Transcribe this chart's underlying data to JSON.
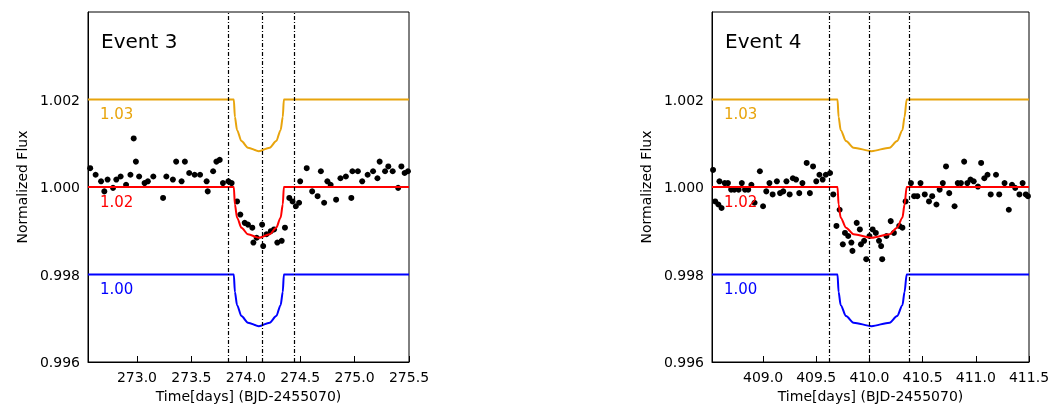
{
  "chart_data": [
    {
      "type": "scatter",
      "title": "Event 3",
      "xlabel": "Time[days] (BJD-2455070)",
      "ylabel": "Normalized Flux",
      "xlim": [
        272.55,
        275.5
      ],
      "ylim": [
        0.996,
        1.004
      ],
      "xticks": [
        {
          "value": 273,
          "label": "273.0"
        },
        {
          "value": 273.5,
          "label": "273.5"
        },
        {
          "value": 274,
          "label": "274.0"
        },
        {
          "value": 274.5,
          "label": "274.5"
        },
        {
          "value": 275,
          "label": "275.0"
        },
        {
          "value": 275.5,
          "label": "275.5"
        }
      ],
      "yticks": [
        {
          "value": 0.996,
          "label": "0.996"
        },
        {
          "value": 0.998,
          "label": "0.998"
        },
        {
          "value": 1,
          "label": "1.000"
        },
        {
          "value": 1.002,
          "label": "1.002"
        }
      ],
      "grid": false,
      "legend": false,
      "ref_lines": [
        {
          "axis": "x",
          "value": 273.84,
          "line_style": "dashed",
          "color": "#000000"
        },
        {
          "axis": "x",
          "value": 274.15,
          "line_style": "dashed",
          "color": "#000000"
        },
        {
          "axis": "x",
          "value": 274.45,
          "line_style": "dashed",
          "color": "#000000"
        }
      ],
      "series": [
        {
          "marker": "circle",
          "color": "#000000",
          "x": [
            272.57,
            272.62,
            272.67,
            272.7,
            272.73,
            272.78,
            272.81,
            272.85,
            272.9,
            272.94,
            272.97,
            272.99,
            273.02,
            273.07,
            273.1,
            273.15,
            273.24,
            273.27,
            273.33,
            273.36,
            273.41,
            273.44,
            273.48,
            273.53,
            273.58,
            273.64,
            273.65,
            273.7,
            273.73,
            273.76,
            273.79,
            273.84,
            273.87,
            273.92,
            273.95,
            273.99,
            274.02,
            274.06,
            274.07,
            274.1,
            274.15,
            274.16,
            274.19,
            274.23,
            274.26,
            274.29,
            274.33,
            274.36,
            274.4,
            274.43,
            274.46,
            274.49,
            274.5,
            274.56,
            274.61,
            274.66,
            274.69,
            274.72,
            274.75,
            274.78,
            274.83,
            274.87,
            274.92,
            274.97,
            274.98,
            275.03,
            275.07,
            275.12,
            275.17,
            275.21,
            275.23,
            275.28,
            275.31,
            275.35,
            275.4,
            275.43,
            275.46,
            275.49
          ],
          "values": [
            1.00043,
            1.00028,
            1.00013,
            0.9999,
            1.00017,
            0.99998,
            1.00017,
            1.00024,
            1.00005,
            1.00028,
            1.00111,
            1.00058,
            1.00024,
            1.00009,
            1.00013,
            1.00024,
            0.99975,
            1.00024,
            1.00017,
            1.00058,
            1.00013,
            1.00058,
            1.00032,
            1.00028,
            1.00028,
            1.00013,
            0.9999,
            1.00036,
            1.00058,
            1.00062,
            1.00009,
            1.00013,
            1.00009,
            0.99967,
            0.99937,
            0.99918,
            0.99914,
            0.99907,
            0.99873,
            0.99884,
            0.99914,
            0.99865,
            0.99892,
            0.99899,
            0.99903,
            0.99873,
            0.99877,
            0.99907,
            0.99975,
            0.99967,
            0.99956,
            0.99964,
            1.00013,
            1.00043,
            0.9999,
            0.99979,
            1.00036,
            0.99964,
            1.00013,
            1.00005,
            0.99971,
            1.0002,
            1.00024,
            0.99975,
            1.00036,
            1.00036,
            1.00013,
            1.00028,
            1.00036,
            1.0002,
            1.00058,
            1.00036,
            1.00047,
            1.00036,
            0.99998,
            1.00047,
            1.00032,
            1.00036
          ]
        },
        {
          "type": "line",
          "name": "1.03",
          "color": "#e8a40c",
          "x": [
            272.55,
            273.89,
            273.9,
            273.92,
            273.96,
            274.02,
            274.12,
            274.22,
            274.28,
            274.32,
            274.34,
            274.35,
            275.5
          ],
          "values": [
            1.002,
            1.002,
            1.0016,
            1.0013,
            1.00105,
            1.0009,
            1.00082,
            1.0009,
            1.00105,
            1.0013,
            1.0016,
            1.002,
            1.002
          ]
        },
        {
          "type": "line",
          "name": "1.02",
          "color": "#ff0000",
          "x": [
            272.55,
            273.89,
            273.9,
            273.92,
            273.96,
            274.02,
            274.12,
            274.22,
            274.28,
            274.32,
            274.34,
            274.35,
            275.5
          ],
          "values": [
            1.0,
            1.0,
            0.9996,
            0.9993,
            0.99907,
            0.99892,
            0.99884,
            0.99892,
            0.99907,
            0.9993,
            0.9996,
            1.0,
            1.0
          ]
        },
        {
          "type": "line",
          "name": "1.00",
          "color": "#0000ff",
          "x": [
            272.55,
            273.89,
            273.9,
            273.92,
            273.96,
            274.02,
            274.12,
            274.22,
            274.28,
            274.32,
            274.34,
            274.35,
            275.5
          ],
          "values": [
            0.998,
            0.998,
            0.9976,
            0.9973,
            0.99705,
            0.9969,
            0.99682,
            0.9969,
            0.99705,
            0.9973,
            0.9976,
            0.998,
            0.998
          ]
        }
      ]
    },
    {
      "type": "scatter",
      "title": "Event 4",
      "xlabel": "Time[days] (BJD-2455070)",
      "ylabel": "Normalized Flux",
      "xlim": [
        408.52,
        411.5
      ],
      "ylim": [
        0.996,
        1.004
      ],
      "xticks": [
        {
          "value": 409,
          "label": "409.0"
        },
        {
          "value": 409.5,
          "label": "409.5"
        },
        {
          "value": 410,
          "label": "410.0"
        },
        {
          "value": 410.5,
          "label": "410.5"
        },
        {
          "value": 411,
          "label": "411.0"
        },
        {
          "value": 411.5,
          "label": "411.5"
        }
      ],
      "yticks": [
        {
          "value": 0.996,
          "label": "0.996"
        },
        {
          "value": 0.998,
          "label": "0.998"
        },
        {
          "value": 1,
          "label": "1.000"
        },
        {
          "value": 1.002,
          "label": "1.002"
        }
      ],
      "grid": false,
      "legend": false,
      "ref_lines": [
        {
          "axis": "x",
          "value": 409.62,
          "line_style": "dashed",
          "color": "#000000"
        },
        {
          "axis": "x",
          "value": 410.0,
          "line_style": "dashed",
          "color": "#000000"
        },
        {
          "axis": "x",
          "value": 410.37,
          "line_style": "dashed",
          "color": "#000000"
        }
      ],
      "series": [
        {
          "marker": "circle",
          "color": "#000000",
          "x": [
            408.53,
            408.55,
            408.58,
            408.61,
            408.59,
            408.64,
            408.67,
            408.7,
            408.73,
            408.77,
            408.8,
            408.83,
            408.86,
            408.89,
            408.92,
            408.97,
            409.0,
            409.03,
            409.06,
            409.09,
            409.13,
            409.16,
            409.19,
            409.22,
            409.25,
            409.28,
            409.31,
            409.34,
            409.37,
            409.41,
            409.44,
            409.47,
            409.5,
            409.53,
            409.56,
            409.59,
            409.63,
            409.66,
            409.69,
            409.72,
            409.75,
            409.77,
            409.8,
            409.83,
            409.84,
            409.88,
            409.91,
            409.92,
            409.95,
            409.97,
            410.0,
            410.03,
            410.06,
            410.09,
            410.11,
            410.12,
            410.16,
            410.2,
            410.23,
            410.28,
            410.31,
            410.34,
            410.39,
            410.42,
            410.45,
            410.48,
            410.52,
            410.56,
            410.59,
            410.63,
            410.66,
            410.69,
            410.72,
            410.75,
            410.8,
            410.83,
            410.86,
            410.89,
            410.92,
            410.95,
            410.98,
            411.02,
            411.05,
            411.08,
            411.11,
            411.14,
            411.19,
            411.22,
            411.27,
            411.31,
            411.34,
            411.37,
            411.41,
            411.44,
            411.47,
            411.49
          ],
          "values": [
            1.00039,
            0.99967,
            0.9996,
            0.99952,
            1.00013,
            1.00009,
            1.00009,
            0.99994,
            0.99994,
            0.99994,
            1.00009,
            0.99994,
            0.99994,
            1.00005,
            0.99964,
            1.00036,
            0.99956,
            0.9999,
            1.00009,
            0.99983,
            1.00013,
            0.99986,
            0.9999,
            1.00013,
            0.99983,
            1.0002,
            1.00017,
            0.99986,
            1.00009,
            1.00055,
            0.99986,
            1.00047,
            1.00013,
            1.00028,
            1.00017,
            1.00028,
            1.00032,
            0.99983,
            0.99911,
            0.99948,
            0.99869,
            0.99895,
            0.99888,
            0.99873,
            0.99854,
            0.99918,
            0.99903,
            0.99869,
            0.99877,
            0.99835,
            0.99888,
            0.99903,
            0.99895,
            0.99877,
            0.99865,
            0.99835,
            0.99888,
            0.99922,
            0.99895,
            0.99911,
            0.99907,
            0.99967,
            1.00009,
            0.99979,
            0.99979,
            1.00009,
            0.99983,
            0.99967,
            0.99979,
            0.9996,
            0.99994,
            1.00009,
            1.00047,
            0.99986,
            0.99956,
            1.00009,
            1.00009,
            1.00058,
            1.00009,
            1.00017,
            1.00013,
            1.00001,
            1.00055,
            1.0002,
            1.00028,
            0.99983,
            1.00028,
            0.99983,
            1.00009,
            0.99948,
            1.00005,
            0.99998,
            0.99983,
            1.00009,
            0.99983,
            0.99979
          ]
        },
        {
          "type": "line",
          "name": "1.03",
          "color": "#e8a40c",
          "x": [
            408.52,
            409.7,
            409.71,
            409.73,
            409.78,
            409.85,
            410.02,
            410.19,
            410.26,
            410.31,
            410.33,
            410.35,
            411.5
          ],
          "values": [
            1.002,
            1.002,
            1.0016,
            1.0013,
            1.00105,
            1.0009,
            1.00082,
            1.0009,
            1.00105,
            1.0013,
            1.0016,
            1.002,
            1.002
          ]
        },
        {
          "type": "line",
          "name": "1.02",
          "color": "#ff0000",
          "x": [
            408.52,
            409.7,
            409.71,
            409.73,
            409.78,
            409.85,
            410.02,
            410.19,
            410.26,
            410.31,
            410.33,
            410.35,
            411.5
          ],
          "values": [
            1.0,
            1.0,
            0.9996,
            0.9993,
            0.99907,
            0.99892,
            0.99884,
            0.99892,
            0.99907,
            0.9993,
            0.9996,
            1.0,
            1.0
          ]
        },
        {
          "type": "line",
          "name": "1.00",
          "color": "#0000ff",
          "x": [
            408.52,
            409.7,
            409.71,
            409.73,
            409.78,
            409.85,
            410.02,
            410.19,
            410.26,
            410.31,
            410.33,
            410.35,
            411.5
          ],
          "values": [
            0.998,
            0.998,
            0.9976,
            0.9973,
            0.99705,
            0.9969,
            0.99682,
            0.9969,
            0.99705,
            0.9973,
            0.9976,
            0.998,
            0.998
          ]
        }
      ]
    }
  ]
}
